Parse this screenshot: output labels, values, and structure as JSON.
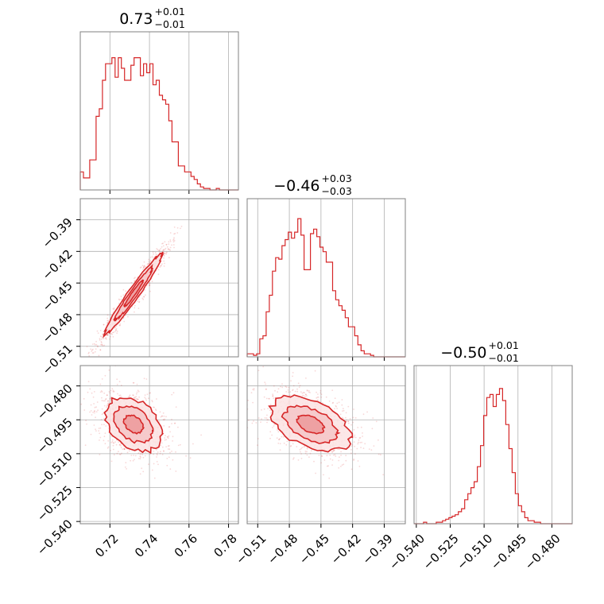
{
  "chart_data": {
    "type": "corner",
    "colors": {
      "accent": "#d62728",
      "fill": "#f4c6c7",
      "grid": "#b0b0b0",
      "frame": "#808080"
    },
    "params": [
      {
        "range": [
          0.705,
          0.785
        ],
        "ticks": [
          0.72,
          0.74,
          0.76,
          0.78
        ],
        "tick_labels": [
          "0.72",
          "0.74",
          "0.76",
          "0.78"
        ]
      },
      {
        "range": [
          -0.52,
          -0.37
        ],
        "ticks": [
          -0.51,
          -0.48,
          -0.45,
          -0.42,
          -0.39
        ],
        "tick_labels": [
          "−0.51",
          "−0.48",
          "−0.45",
          "−0.42",
          "−0.39"
        ]
      },
      {
        "range": [
          -0.541,
          -0.471
        ],
        "ticks": [
          -0.54,
          -0.525,
          -0.51,
          -0.495,
          -0.48
        ],
        "tick_labels": [
          "−0.540",
          "−0.525",
          "−0.510",
          "−0.495",
          "−0.480"
        ]
      }
    ],
    "titles": [
      {
        "value": "0.73",
        "plus": "+0.01",
        "minus": "−0.01"
      },
      {
        "value": "−0.46",
        "plus": "+0.03",
        "minus": "−0.03"
      },
      {
        "value": "−0.50",
        "plus": "+0.01",
        "minus": "−0.01"
      }
    ],
    "histograms": [
      {
        "edges_start": 0.705,
        "bin_width": 0.0016,
        "counts": [
          0.12,
          0.08,
          0.08,
          0.2,
          0.2,
          0.49,
          0.54,
          0.73,
          0.84,
          0.84,
          0.88,
          0.75,
          0.88,
          0.81,
          0.73,
          0.73,
          0.83,
          0.88,
          0.88,
          0.76,
          0.84,
          0.78,
          0.84,
          0.7,
          0.73,
          0.63,
          0.6,
          0.57,
          0.46,
          0.32,
          0.32,
          0.16,
          0.16,
          0.12,
          0.12,
          0.09,
          0.07,
          0.04,
          0.02,
          0.01,
          0.01,
          0.0,
          0.0,
          0.01,
          0.0,
          0.0,
          0.0,
          0.0,
          0.0,
          0.0
        ]
      },
      {
        "edges_start": -0.52,
        "bin_width": 0.003,
        "counts": [
          0.02,
          0.02,
          0.01,
          0.02,
          0.12,
          0.14,
          0.3,
          0.41,
          0.57,
          0.66,
          0.65,
          0.74,
          0.78,
          0.83,
          0.79,
          0.83,
          0.92,
          0.81,
          0.58,
          0.58,
          0.82,
          0.85,
          0.8,
          0.73,
          0.7,
          0.63,
          0.63,
          0.44,
          0.38,
          0.34,
          0.31,
          0.26,
          0.2,
          0.2,
          0.14,
          0.08,
          0.04,
          0.02,
          0.02,
          0.01,
          0.0,
          0.0,
          0.0,
          0.0,
          0.0,
          0.0,
          0.0,
          0.0,
          0.0,
          0.0
        ]
      },
      {
        "edges_start": -0.541,
        "bin_width": 0.0014,
        "counts": [
          0.0,
          0.0,
          0.0,
          0.01,
          0.0,
          0.0,
          0.0,
          0.01,
          0.01,
          0.02,
          0.03,
          0.04,
          0.05,
          0.06,
          0.08,
          0.1,
          0.16,
          0.2,
          0.24,
          0.28,
          0.38,
          0.52,
          0.72,
          0.84,
          0.86,
          0.78,
          0.86,
          0.9,
          0.82,
          0.66,
          0.5,
          0.34,
          0.2,
          0.12,
          0.08,
          0.04,
          0.02,
          0.02,
          0.01,
          0.01,
          0.0,
          0.0,
          0.0,
          0.0,
          0.0,
          0.0,
          0.0,
          0.0,
          0.0,
          0.0
        ]
      }
    ],
    "pairs": [
      {
        "row": 1,
        "col": 0,
        "corr": 0.97
      },
      {
        "row": 2,
        "col": 0,
        "corr": -0.35
      },
      {
        "row": 2,
        "col": 1,
        "corr": -0.45
      }
    ],
    "grid": true,
    "contour_levels": [
      0.5,
      1.0,
      1.5
    ]
  }
}
